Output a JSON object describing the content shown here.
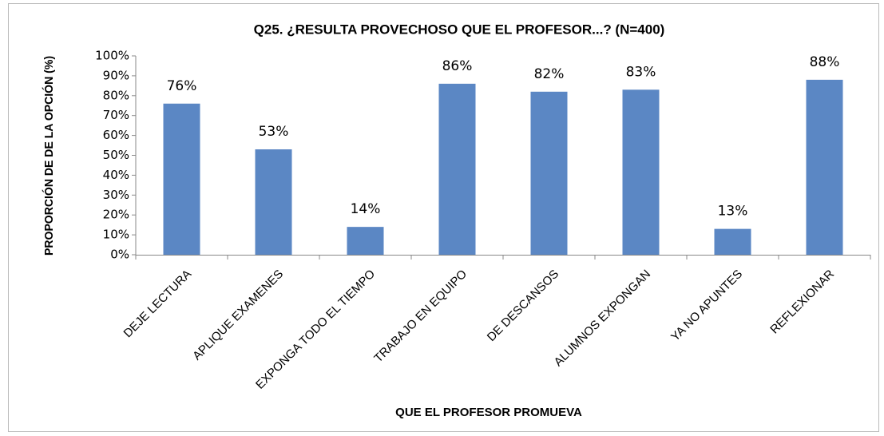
{
  "chart_data": {
    "type": "bar",
    "title": "Q25. ¿RESULTA PROVECHOSO QUE EL PROFESOR...?  (N=400)",
    "x_label": "QUE EL PROFESOR PROMUEVA",
    "y_label": "PROPORCIÓN DE DE LA OPCIÓN (%)",
    "categories": [
      "DEJE LECTURA",
      "APLIQUE EXAMENES",
      "EXPONGA TODO EL TIEMPO",
      "TRABAJO EN EQUIPO",
      "DE DESCANSOS",
      "ALUMNOS EXPONGAN",
      "YA NO APUNTES",
      "REFLEXIONAR"
    ],
    "values": [
      76,
      53,
      14,
      86,
      82,
      83,
      13,
      88
    ],
    "value_labels": [
      "76%",
      "53%",
      "14%",
      "86%",
      "82%",
      "83%",
      "13%",
      "88%"
    ],
    "color": "#5b87c4",
    "ylim": [
      0,
      100
    ],
    "yticks": [
      {
        "value": 0,
        "label": "0%"
      },
      {
        "value": 10,
        "label": "10%"
      },
      {
        "value": 20,
        "label": "20%"
      },
      {
        "value": 30,
        "label": "30%"
      },
      {
        "value": 40,
        "label": "40%"
      },
      {
        "value": 50,
        "label": "50%"
      },
      {
        "value": 60,
        "label": "60%"
      },
      {
        "value": 70,
        "label": "70%"
      },
      {
        "value": 80,
        "label": "80%"
      },
      {
        "value": 90,
        "label": "90%"
      },
      {
        "value": 100,
        "label": "100%"
      }
    ],
    "grid": false
  }
}
